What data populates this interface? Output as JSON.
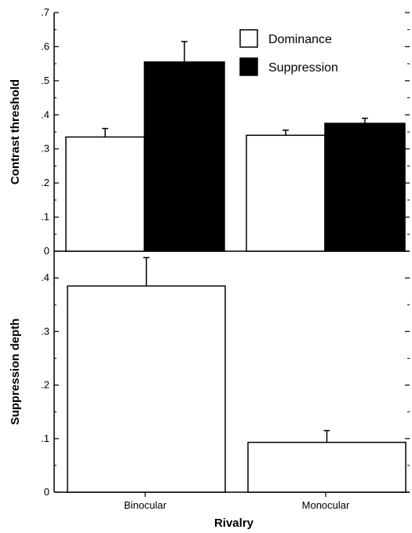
{
  "chart_data": [
    {
      "type": "bar",
      "categories": [
        "Binocular",
        "Monocular"
      ],
      "series": [
        {
          "name": "Dominance",
          "values": [
            0.335,
            0.34
          ],
          "errors": [
            0.025,
            0.015
          ],
          "color": "#ffffff"
        },
        {
          "name": "Suppression",
          "values": [
            0.555,
            0.375
          ],
          "errors": [
            0.06,
            0.015
          ],
          "color": "#000000"
        }
      ],
      "ylabel": "Contrast threshold",
      "ylim": [
        0,
        0.7
      ],
      "yticks": [
        0,
        0.1,
        0.2,
        0.3,
        0.4,
        0.5,
        0.6,
        0.7
      ],
      "ytick_labels": [
        "0",
        ".1",
        ".2",
        ".3",
        ".4",
        ".5",
        ".6",
        ".7"
      ],
      "legend": "top-right",
      "grid": false
    },
    {
      "type": "bar",
      "categories": [
        "Binocular",
        "Monocular"
      ],
      "series": [
        {
          "values": [
            0.385,
            0.093
          ],
          "errors": [
            0.053,
            0.022
          ],
          "color": "#ffffff"
        }
      ],
      "ylabel": "Suppression depth",
      "xlabel": "Rivalry",
      "ylim": [
        0,
        0.45
      ],
      "yticks": [
        0,
        0.1,
        0.2,
        0.3,
        0.4
      ],
      "ytick_labels": [
        "0",
        ".1",
        ".2",
        ".3",
        ".4"
      ],
      "grid": false
    }
  ]
}
